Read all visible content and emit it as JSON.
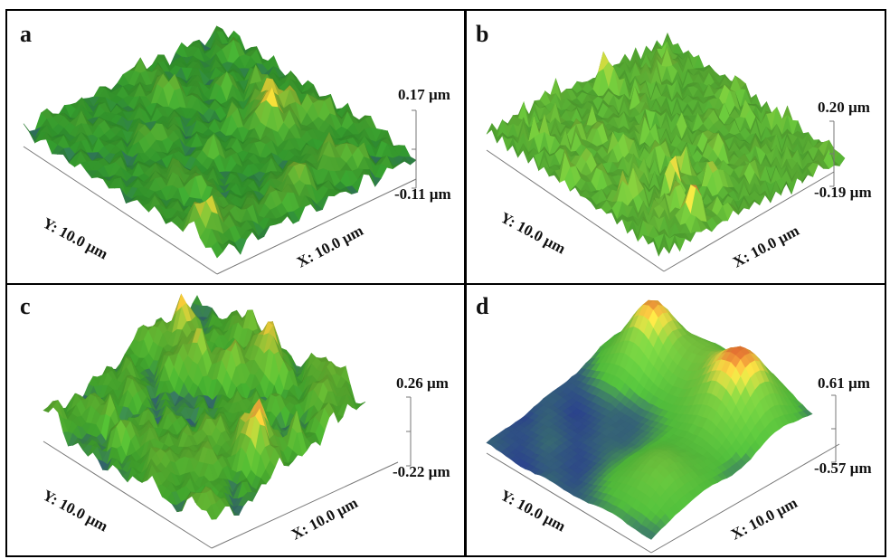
{
  "panels": [
    {
      "letter": "a",
      "z_max": "0.17 µm",
      "z_min": "-0.11 µm",
      "x_label": "X: 10.0 µm",
      "y_label": "Y: 10.0 µm",
      "texture": "fine",
      "colors": {
        "low": "#2a3f8f",
        "mid": "#2f8f2a",
        "high": "#e0c030",
        "peak": "#c8603a"
      }
    },
    {
      "letter": "b",
      "z_max": "0.20 µm",
      "z_min": "-0.19 µm",
      "x_label": "X: 10.0 µm",
      "y_label": "Y: 10.0 µm",
      "texture": "spiky",
      "colors": {
        "low": "#2a3f8f",
        "mid": "#4aa030",
        "high": "#e2c438",
        "peak": "#c8603a"
      }
    },
    {
      "letter": "c",
      "z_max": "0.26 µm",
      "z_min": "-0.22 µm",
      "x_label": "X: 10.0 µm",
      "y_label": "Y: 10.0 µm",
      "texture": "granular",
      "colors": {
        "low": "#2a3f8f",
        "mid": "#3c9a2a",
        "high": "#e6c035",
        "peak": "#cc5a3a"
      }
    },
    {
      "letter": "d",
      "z_max": "0.61 µm",
      "z_min": "-0.57 µm",
      "x_label": "X: 10.0 µm",
      "y_label": "Y: 10.0 µm",
      "texture": "smooth",
      "colors": {
        "low": "#2a3f8f",
        "mid": "#4fb83a",
        "high": "#e8d040",
        "peak": "#e06a30"
      }
    }
  ]
}
